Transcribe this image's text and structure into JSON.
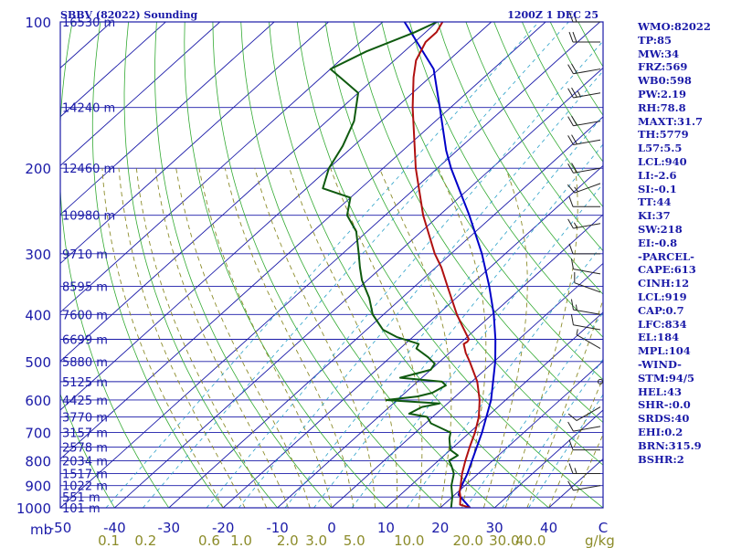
{
  "header": {
    "station": "SBBV (82022) Sounding",
    "time": "1200Z  1 DEC 25"
  },
  "indices": [
    "WMO:82022",
    "TP:85",
    "MW:34",
    "FRZ:569",
    "WB0:598",
    "PW:2.19",
    "RH:78.8",
    "MAXT:31.7",
    "TH:5779",
    "L57:5.5",
    "LCL:940",
    "LI:-2.6",
    "SI:-0.1",
    "TT:44",
    "KI:37",
    "SW:218",
    "EI:-0.8",
    "-PARCEL-",
    "CAPE:613",
    "CINH:12",
    "LCL:919",
    "CAP:0.7",
    "LFC:834",
    "EL:184",
    "MPL:104",
    "-WIND-",
    "STM:94/5",
    "HEL:43",
    "SHR-:0.0",
    "SRDS:40",
    "EHI:0.2",
    "BRN:315.9",
    "BSHR:2"
  ],
  "colors": {
    "frame": "#1a1aa8",
    "isobar": "#1a1aa8",
    "isotherm": "#1a1aa8",
    "dry_adiabat": "#33aa33",
    "moist_adiabat": "#8c8c2a",
    "mixing_ratio": "#2aa0c8",
    "temperature": "#b01010",
    "dewpoint": "#0f5a0f",
    "parcel": "#0000c8",
    "wind_barb": "#222222"
  },
  "chart_data": {
    "type": "skew-t log-p sounding",
    "pressure_range_mb": [
      1000,
      100
    ],
    "temperature_range_c": [
      -50,
      50
    ],
    "pressure_labels": [
      100,
      200,
      300,
      400,
      500,
      600,
      700,
      800,
      900,
      1000
    ],
    "pressure_unit": "mb",
    "temperature_labels": [
      -50,
      -40,
      -30,
      -20,
      -10,
      0,
      10,
      20,
      30,
      40,
      "C"
    ],
    "mixing_ratio_labels": [
      "0.1",
      "0.2",
      "0.6",
      "1.0",
      "2.0",
      "3.0",
      "5.0",
      "10.0",
      "20.0",
      "30.0",
      "40.0"
    ],
    "mixing_ratio_unit": "g/kg",
    "heights": [
      {
        "p": 100,
        "label": "16530 m"
      },
      {
        "p": 150,
        "label": "14240 m"
      },
      {
        "p": 200,
        "label": "12460 m"
      },
      {
        "p": 250,
        "label": "10980 m"
      },
      {
        "p": 300,
        "label": "9710 m"
      },
      {
        "p": 350,
        "label": "8595 m"
      },
      {
        "p": 400,
        "label": "7600 m"
      },
      {
        "p": 450,
        "label": "6699 m"
      },
      {
        "p": 500,
        "label": "5880 m"
      },
      {
        "p": 550,
        "label": "5125 m"
      },
      {
        "p": 600,
        "label": "4425 m"
      },
      {
        "p": 650,
        "label": "3770 m"
      },
      {
        "p": 700,
        "label": "3157 m"
      },
      {
        "p": 750,
        "label": "2578 m"
      },
      {
        "p": 800,
        "label": "2034 m"
      },
      {
        "p": 850,
        "label": "1517 m"
      },
      {
        "p": 900,
        "label": "1022 m"
      },
      {
        "p": 950,
        "label": "551 m"
      },
      {
        "p": 1000,
        "label": "101 m"
      }
    ],
    "temperature_profile": [
      [
        1000,
        25.5
      ],
      [
        985,
        23.0
      ],
      [
        950,
        21.5
      ],
      [
        925,
        20.2
      ],
      [
        900,
        19.2
      ],
      [
        850,
        17.0
      ],
      [
        800,
        15.0
      ],
      [
        750,
        13.0
      ],
      [
        700,
        11.0
      ],
      [
        650,
        8.5
      ],
      [
        600,
        5.2
      ],
      [
        550,
        1.0
      ],
      [
        500,
        -4.5
      ],
      [
        480,
        -7.0
      ],
      [
        460,
        -9.2
      ],
      [
        455,
        -9.0
      ],
      [
        450,
        -9.2
      ],
      [
        420,
        -13.5
      ],
      [
        400,
        -16.5
      ],
      [
        350,
        -24.0
      ],
      [
        320,
        -29.0
      ],
      [
        300,
        -33.0
      ],
      [
        250,
        -43.0
      ],
      [
        200,
        -54.0
      ],
      [
        150,
        -67.0
      ],
      [
        130,
        -73.0
      ],
      [
        120,
        -76.0
      ],
      [
        110,
        -78.0
      ],
      [
        105,
        -78.0
      ],
      [
        100,
        -79.0
      ]
    ],
    "dewpoint_profile": [
      [
        1000,
        22.0
      ],
      [
        950,
        20.0
      ],
      [
        900,
        17.5
      ],
      [
        850,
        15.5
      ],
      [
        820,
        13.5
      ],
      [
        800,
        12.0
      ],
      [
        780,
        12.5
      ],
      [
        760,
        10.0
      ],
      [
        720,
        7.5
      ],
      [
        700,
        6.5
      ],
      [
        670,
        1.0
      ],
      [
        650,
        -1.0
      ],
      [
        640,
        -5.0
      ],
      [
        620,
        -4.0
      ],
      [
        610,
        -1.5
      ],
      [
        600,
        -12.0
      ],
      [
        590,
        -7.0
      ],
      [
        580,
        -5.0
      ],
      [
        560,
        -4.0
      ],
      [
        550,
        -5.5
      ],
      [
        540,
        -14.0
      ],
      [
        520,
        -10.0
      ],
      [
        505,
        -10.5
      ],
      [
        490,
        -13.0
      ],
      [
        470,
        -17.0
      ],
      [
        460,
        -17.5
      ],
      [
        445,
        -23.0
      ],
      [
        430,
        -27.0
      ],
      [
        400,
        -32.0
      ],
      [
        370,
        -36.0
      ],
      [
        340,
        -41.0
      ],
      [
        320,
        -44.0
      ],
      [
        300,
        -47.0
      ],
      [
        270,
        -52.0
      ],
      [
        250,
        -57.0
      ],
      [
        230,
        -60.0
      ],
      [
        220,
        -67.0
      ],
      [
        200,
        -70.0
      ],
      [
        180,
        -72.0
      ],
      [
        160,
        -75.0
      ],
      [
        140,
        -80.0
      ],
      [
        125,
        -90.0
      ],
      [
        115,
        -87.0
      ],
      [
        105,
        -82.0
      ],
      [
        100,
        -80.0
      ]
    ],
    "parcel_profile": [
      [
        1000,
        25.5
      ],
      [
        940,
        20.7
      ],
      [
        900,
        19.4
      ],
      [
        850,
        18.0
      ],
      [
        800,
        16.2
      ],
      [
        700,
        12.3
      ],
      [
        600,
        7.3
      ],
      [
        500,
        0.2
      ],
      [
        450,
        -4.3
      ],
      [
        400,
        -9.7
      ],
      [
        350,
        -16.3
      ],
      [
        300,
        -24.3
      ],
      [
        250,
        -34.5
      ],
      [
        200,
        -47.5
      ],
      [
        184,
        -52.0
      ],
      [
        150,
        -62.0
      ],
      [
        125,
        -71.0
      ],
      [
        100,
        -86.0
      ]
    ],
    "wind_barbs": [
      {
        "p": 100,
        "dir": 90,
        "kt": 15
      },
      {
        "p": 110,
        "dir": 90,
        "kt": 20
      },
      {
        "p": 125,
        "dir": 80,
        "kt": 20
      },
      {
        "p": 140,
        "dir": 80,
        "kt": 25
      },
      {
        "p": 160,
        "dir": 80,
        "kt": 20
      },
      {
        "p": 175,
        "dir": 80,
        "kt": 20
      },
      {
        "p": 200,
        "dir": 80,
        "kt": 20
      },
      {
        "p": 215,
        "dir": 70,
        "kt": 15
      },
      {
        "p": 240,
        "dir": 90,
        "kt": 10
      },
      {
        "p": 260,
        "dir": 80,
        "kt": 15
      },
      {
        "p": 300,
        "dir": 90,
        "kt": 10
      },
      {
        "p": 330,
        "dir": 100,
        "kt": 10
      },
      {
        "p": 360,
        "dir": 110,
        "kt": 10
      },
      {
        "p": 400,
        "dir": 100,
        "kt": 15
      },
      {
        "p": 430,
        "dir": 100,
        "kt": 10
      },
      {
        "p": 470,
        "dir": 120,
        "kt": 5
      },
      {
        "p": 550,
        "dir": 90,
        "kt": 0
      },
      {
        "p": 620,
        "dir": 60,
        "kt": 10
      },
      {
        "p": 680,
        "dir": 80,
        "kt": 10
      },
      {
        "p": 760,
        "dir": 90,
        "kt": 10
      },
      {
        "p": 850,
        "dir": 90,
        "kt": 15
      },
      {
        "p": 900,
        "dir": 80,
        "kt": 10
      }
    ]
  }
}
